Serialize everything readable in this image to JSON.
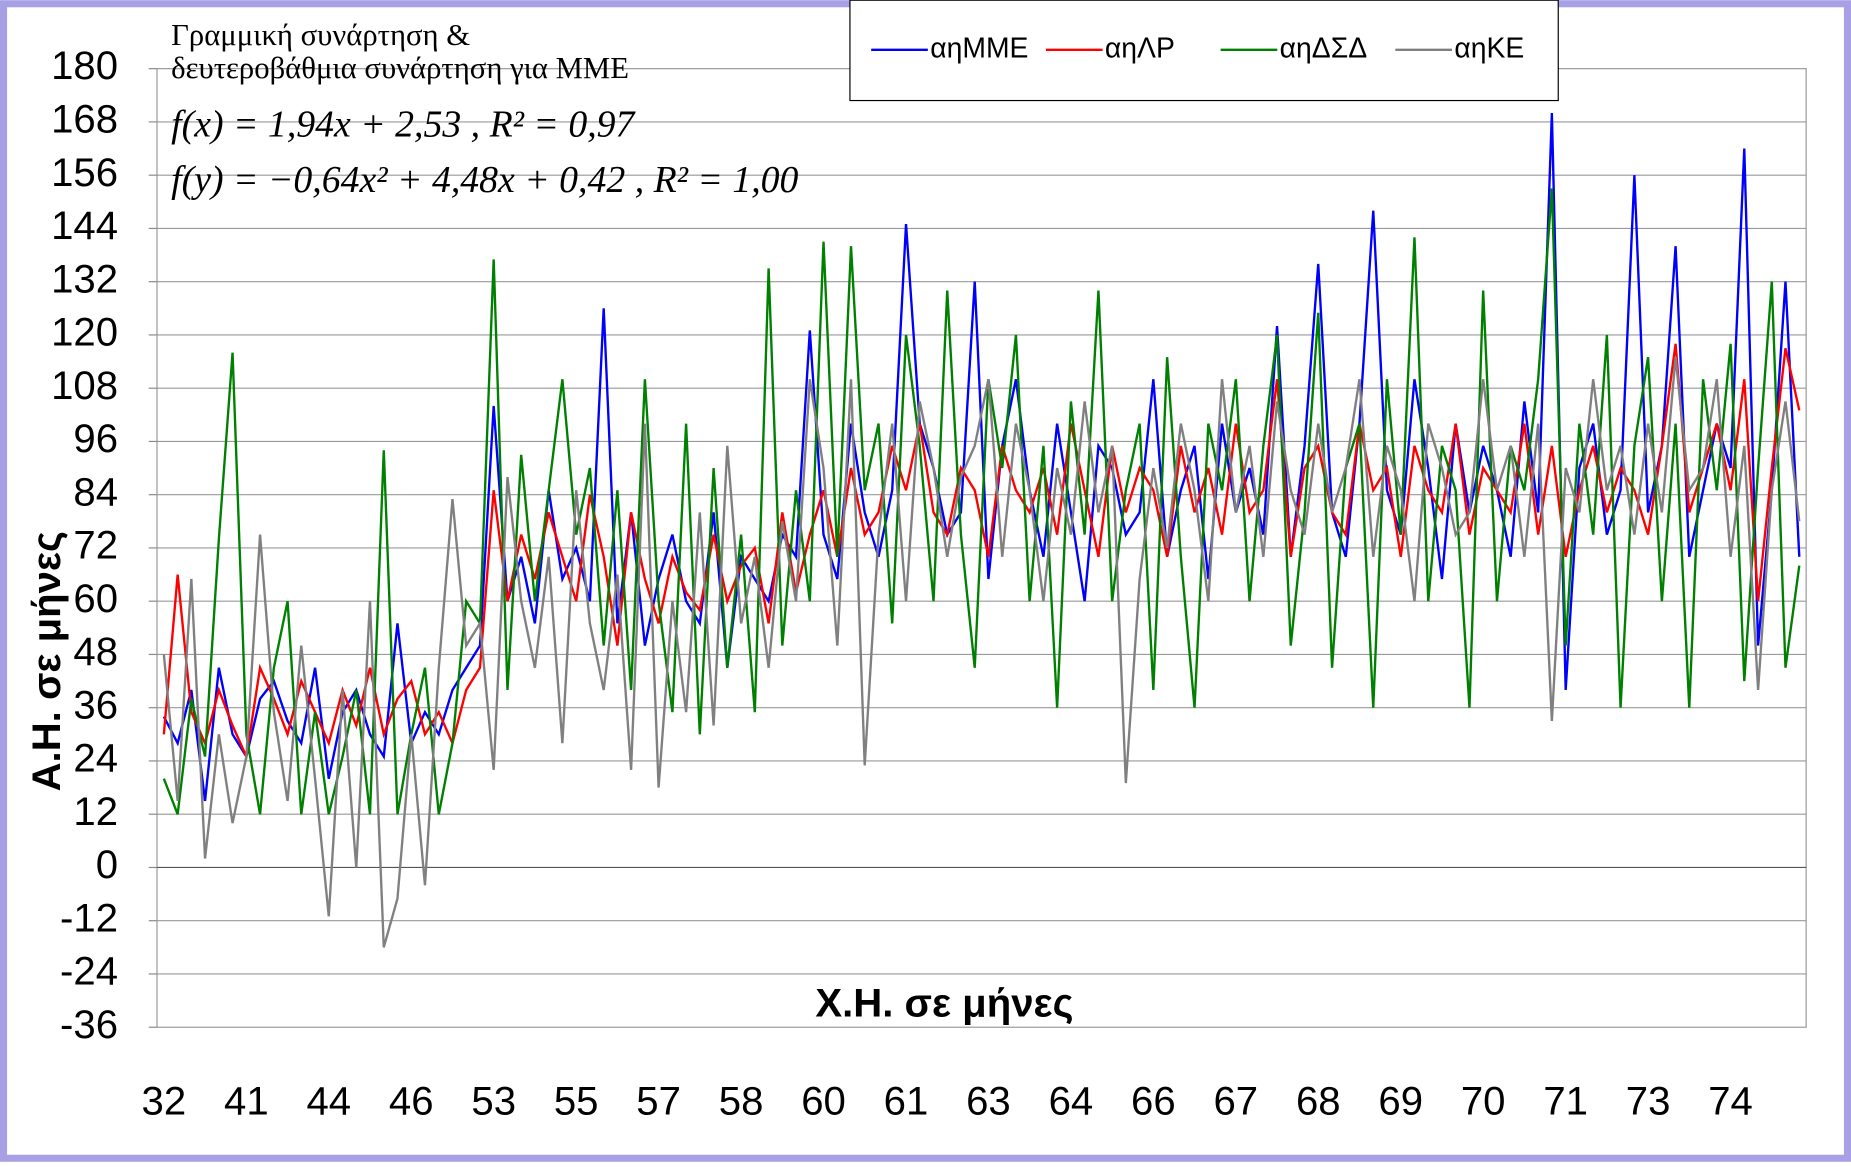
{
  "chart_data": {
    "type": "line",
    "annotations": [
      "Γραμμική συνάρτηση &",
      "δευτεροβάθμια συνάρτηση για ΜΜΕ",
      "f(x) = 1,94x + 2,53   , R² = 0,97",
      "f(y) = −0,64x² + 4,48x + 0,42   , R² = 1,00"
    ],
    "x_label": "Χ.Η. σε μήνες",
    "y_label": "Α.Η. σε μήνες",
    "ylim": [
      -36,
      180
    ],
    "yticks": [
      -36,
      -24,
      -12,
      0,
      12,
      24,
      36,
      48,
      60,
      72,
      84,
      96,
      108,
      120,
      132,
      144,
      156,
      168,
      180
    ],
    "grid": true,
    "legend_position": "top",
    "categories": [
      "32",
      null,
      null,
      null,
      null,
      null,
      "41",
      null,
      null,
      null,
      null,
      null,
      "44",
      null,
      null,
      null,
      null,
      null,
      "46",
      null,
      null,
      null,
      null,
      null,
      "53",
      null,
      null,
      null,
      null,
      null,
      "55",
      null,
      null,
      null,
      null,
      null,
      "57",
      null,
      null,
      null,
      null,
      null,
      "58",
      null,
      null,
      null,
      null,
      null,
      "60",
      null,
      null,
      null,
      null,
      null,
      "61",
      null,
      null,
      null,
      null,
      null,
      "63",
      null,
      null,
      null,
      null,
      null,
      "64",
      null,
      null,
      null,
      null,
      null,
      "66",
      null,
      null,
      null,
      null,
      null,
      "67",
      null,
      null,
      null,
      null,
      null,
      "68",
      null,
      null,
      null,
      null,
      null,
      "69",
      null,
      null,
      null,
      null,
      null,
      "70",
      null,
      null,
      null,
      null,
      null,
      "71",
      null,
      null,
      null,
      null,
      null,
      "73",
      null,
      null,
      null,
      null,
      null,
      "74",
      null,
      null,
      null,
      null,
      null
    ],
    "series": [
      {
        "name": "αηΜΜΕ",
        "color": "#0000ff",
        "values": [
          34,
          28,
          40,
          15,
          45,
          30,
          25,
          38,
          42,
          33,
          28,
          45,
          20,
          35,
          40,
          30,
          25,
          55,
          28,
          35,
          30,
          40,
          45,
          50,
          104,
          60,
          70,
          55,
          85,
          65,
          72,
          60,
          126,
          55,
          80,
          50,
          65,
          75,
          60,
          55,
          80,
          45,
          70,
          65,
          60,
          75,
          70,
          121,
          75,
          65,
          100,
          80,
          70,
          85,
          145,
          100,
          90,
          75,
          80,
          132,
          65,
          95,
          110,
          85,
          70,
          100,
          80,
          60,
          95,
          90,
          75,
          80,
          110,
          70,
          85,
          95,
          65,
          100,
          80,
          90,
          75,
          122,
          70,
          95,
          136,
          80,
          70,
          100,
          148,
          85,
          75,
          110,
          90,
          65,
          100,
          80,
          95,
          85,
          70,
          105,
          80,
          170,
          40,
          90,
          100,
          75,
          85,
          156,
          80,
          95,
          140,
          70,
          85,
          100,
          90,
          162,
          50,
          85,
          132,
          70
        ]
      },
      {
        "name": "αηΛΡ",
        "color": "#ff0000",
        "values": [
          30,
          66,
          35,
          28,
          40,
          32,
          25,
          45,
          38,
          30,
          42,
          35,
          28,
          40,
          32,
          45,
          30,
          38,
          42,
          30,
          35,
          28,
          40,
          45,
          85,
          60,
          75,
          65,
          80,
          70,
          60,
          84,
          70,
          50,
          80,
          65,
          55,
          70,
          62,
          58,
          75,
          60,
          68,
          72,
          55,
          80,
          62,
          75,
          85,
          70,
          90,
          75,
          80,
          95,
          85,
          100,
          80,
          75,
          90,
          85,
          70,
          95,
          85,
          80,
          90,
          75,
          100,
          85,
          70,
          95,
          80,
          90,
          85,
          70,
          95,
          80,
          90,
          75,
          100,
          80,
          85,
          110,
          70,
          90,
          95,
          80,
          75,
          100,
          85,
          90,
          70,
          95,
          85,
          80,
          100,
          75,
          90,
          85,
          80,
          100,
          75,
          95,
          70,
          85,
          95,
          80,
          90,
          85,
          75,
          95,
          118,
          80,
          90,
          100,
          85,
          110,
          60,
          90,
          117,
          103
        ]
      },
      {
        "name": "αηΔΣΔ",
        "color": "#008000",
        "values": [
          20,
          12,
          38,
          25,
          74,
          116,
          30,
          12,
          45,
          60,
          12,
          35,
          12,
          25,
          40,
          12,
          94,
          12,
          30,
          45,
          12,
          28,
          60,
          55,
          137,
          40,
          93,
          60,
          85,
          110,
          75,
          90,
          50,
          85,
          40,
          110,
          60,
          35,
          100,
          30,
          90,
          45,
          75,
          35,
          135,
          50,
          85,
          60,
          141,
          70,
          140,
          85,
          100,
          55,
          120,
          95,
          60,
          130,
          75,
          45,
          110,
          90,
          120,
          60,
          95,
          36,
          105,
          75,
          130,
          60,
          85,
          100,
          40,
          115,
          70,
          36,
          100,
          85,
          110,
          60,
          95,
          120,
          50,
          80,
          125,
          45,
          90,
          100,
          36,
          110,
          75,
          142,
          60,
          95,
          85,
          36,
          130,
          60,
          95,
          85,
          110,
          153,
          50,
          100,
          75,
          120,
          36,
          95,
          115,
          60,
          100,
          36,
          110,
          85,
          118,
          42,
          90,
          132,
          45,
          68
        ]
      },
      {
        "name": "αηΚΕ",
        "color": "#808080",
        "values": [
          48,
          15,
          65,
          2,
          30,
          10,
          25,
          75,
          35,
          15,
          50,
          20,
          -11,
          40,
          0,
          60,
          -18,
          -7,
          30,
          -4,
          45,
          83,
          50,
          55,
          22,
          88,
          60,
          45,
          70,
          28,
          85,
          55,
          40,
          66,
          22,
          100,
          18,
          60,
          35,
          80,
          32,
          95,
          55,
          70,
          45,
          78,
          60,
          110,
          90,
          50,
          110,
          23,
          75,
          100,
          60,
          105,
          90,
          70,
          88,
          95,
          110,
          70,
          100,
          85,
          60,
          90,
          75,
          105,
          80,
          95,
          19,
          65,
          90,
          72,
          100,
          85,
          60,
          110,
          80,
          95,
          70,
          105,
          85,
          75,
          100,
          80,
          90,
          110,
          70,
          95,
          85,
          60,
          100,
          90,
          75,
          80,
          110,
          85,
          95,
          70,
          100,
          33,
          90,
          80,
          110,
          85,
          95,
          75,
          100,
          80,
          115,
          85,
          90,
          110,
          70,
          95,
          40,
          85,
          105,
          78
        ]
      }
    ]
  }
}
